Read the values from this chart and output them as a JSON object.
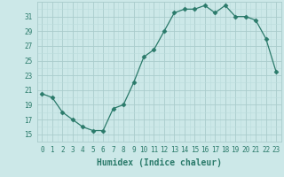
{
  "xlabel": "Humidex (Indice chaleur)",
  "x": [
    0,
    1,
    2,
    3,
    4,
    5,
    6,
    7,
    8,
    9,
    10,
    11,
    12,
    13,
    14,
    15,
    16,
    17,
    18,
    19,
    20,
    21,
    22,
    23
  ],
  "y": [
    20.5,
    20.0,
    18.0,
    17.0,
    16.0,
    15.5,
    15.5,
    18.5,
    19.0,
    22.0,
    25.5,
    26.5,
    29.0,
    31.5,
    32.0,
    32.0,
    32.5,
    31.5,
    32.5,
    31.0,
    31.0,
    30.5,
    28.0,
    23.5
  ],
  "line_color": "#2a7a6a",
  "marker": "D",
  "marker_size": 2.5,
  "bg_color": "#cce8e8",
  "grid_major_color": "#aacccc",
  "grid_minor_color": "#bbdddd",
  "tick_color": "#2a7a6a",
  "label_color": "#2a7a6a",
  "ylim": [
    14,
    33
  ],
  "yticks": [
    15,
    17,
    19,
    21,
    23,
    25,
    27,
    29,
    31
  ],
  "xticks": [
    0,
    1,
    2,
    3,
    4,
    5,
    6,
    7,
    8,
    9,
    10,
    11,
    12,
    13,
    14,
    15,
    16,
    17,
    18,
    19,
    20,
    21,
    22,
    23
  ],
  "xlabel_fontsize": 7,
  "tick_fontsize": 5.5
}
